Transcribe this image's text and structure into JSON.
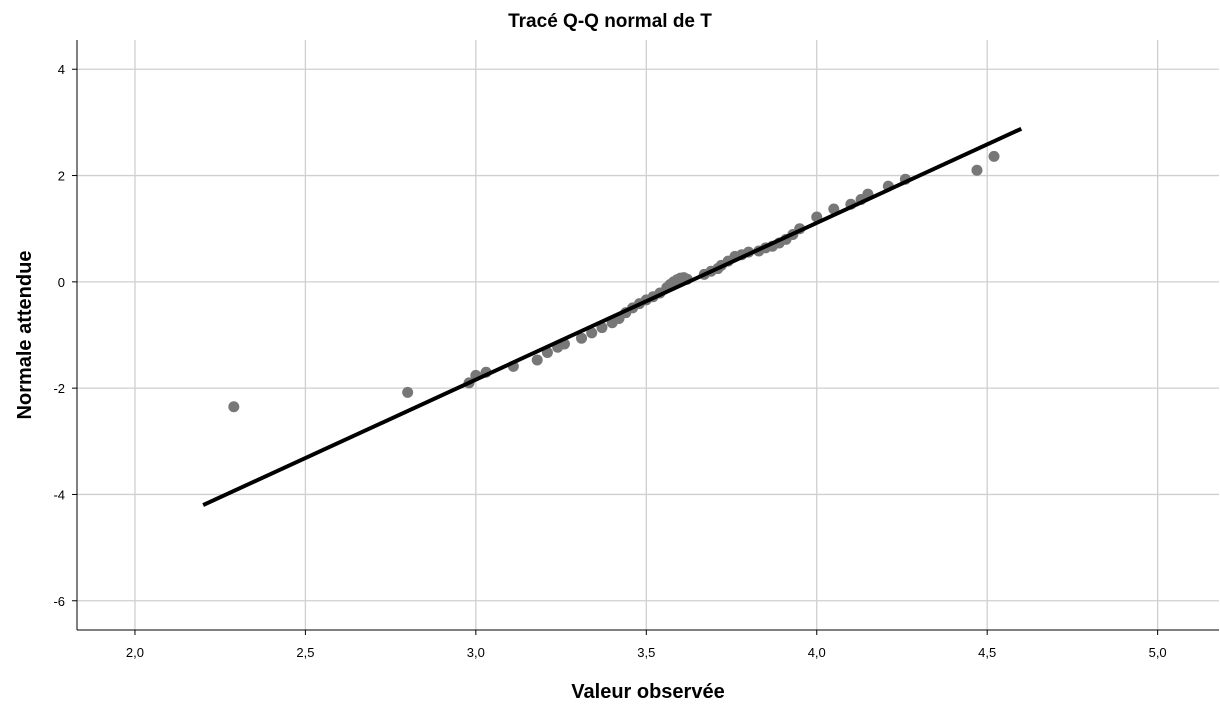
{
  "chart_data": {
    "type": "scatter",
    "title": "Tracé Q-Q normal de T",
    "xlabel": "Valeur observée",
    "ylabel": "Normale attendue",
    "xlim": [
      1.83,
      5.18
    ],
    "ylim": [
      -6.55,
      4.55
    ],
    "xticks": [
      "2,0",
      "2,5",
      "3,0",
      "3,5",
      "4,0",
      "4,5",
      "5,0"
    ],
    "yticks": [
      "4",
      "2",
      "0",
      "-2",
      "-4",
      "-6"
    ],
    "grid": true,
    "colors": {
      "points": "#777777",
      "line": "#000000",
      "grid": "#cfcfcf"
    },
    "reference_line": {
      "x": [
        2.2,
        4.6
      ],
      "y": [
        -4.2,
        2.88
      ]
    },
    "points": {
      "x": [
        2.29,
        2.8,
        2.98,
        3.0,
        3.03,
        3.11,
        3.18,
        3.21,
        3.24,
        3.26,
        3.31,
        3.34,
        3.37,
        3.4,
        3.42,
        3.44,
        3.46,
        3.48,
        3.5,
        3.52,
        3.54,
        3.56,
        3.57,
        3.58,
        3.59,
        3.6,
        3.61,
        3.62,
        3.67,
        3.69,
        3.71,
        3.72,
        3.74,
        3.76,
        3.78,
        3.8,
        3.83,
        3.85,
        3.87,
        3.89,
        3.91,
        3.93,
        3.95,
        4.0,
        4.05,
        4.1,
        4.13,
        4.15,
        4.21,
        4.26,
        4.47,
        4.52
      ],
      "y": [
        -2.35,
        -2.08,
        -1.9,
        -1.76,
        -1.7,
        -1.59,
        -1.47,
        -1.33,
        -1.23,
        -1.17,
        -1.06,
        -0.96,
        -0.86,
        -0.77,
        -0.69,
        -0.58,
        -0.49,
        -0.41,
        -0.34,
        -0.28,
        -0.21,
        -0.11,
        -0.05,
        0.0,
        0.04,
        0.07,
        0.08,
        0.05,
        0.14,
        0.2,
        0.25,
        0.31,
        0.39,
        0.48,
        0.51,
        0.56,
        0.58,
        0.64,
        0.67,
        0.73,
        0.8,
        0.89,
        1.0,
        1.22,
        1.37,
        1.46,
        1.55,
        1.65,
        1.8,
        1.93,
        2.1,
        2.36
      ]
    }
  }
}
